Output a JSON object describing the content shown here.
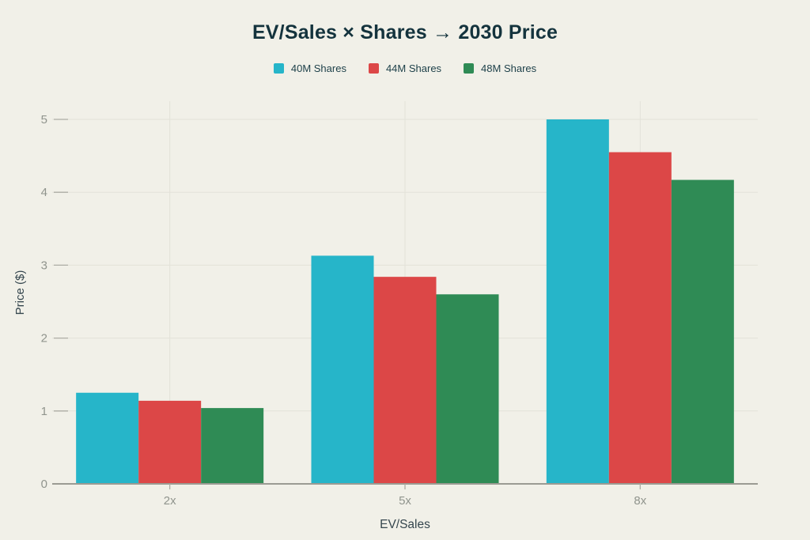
{
  "chart_data": {
    "type": "bar",
    "title": "EV/Sales × Shares → 2030 Price",
    "categories": [
      "2x",
      "5x",
      "8x"
    ],
    "series": [
      {
        "name": "40M Shares",
        "color": "#26b5c9",
        "values": [
          1.25,
          3.13,
          5.0
        ]
      },
      {
        "name": "44M Shares",
        "color": "#dc4747",
        "values": [
          1.14,
          2.84,
          4.55
        ]
      },
      {
        "name": "48M Shares",
        "color": "#2f8b55",
        "values": [
          1.04,
          2.6,
          4.17
        ]
      }
    ],
    "xlabel": "EV/Sales",
    "ylabel": "Price ($)",
    "ylim": [
      0,
      5
    ],
    "yticks": [
      0,
      1,
      2,
      3,
      4,
      5
    ],
    "grid": true,
    "legend_position": "top"
  },
  "colors": {
    "background": "#f1f0e8",
    "title_text": "#14333d",
    "legend_text": "#1c3f48",
    "axis_label_text": "#35464e",
    "tick_text": "#90948d",
    "gridline": "#e3e2d9",
    "tick_mark": "#adada5",
    "axis_line": "#9b9b93"
  }
}
